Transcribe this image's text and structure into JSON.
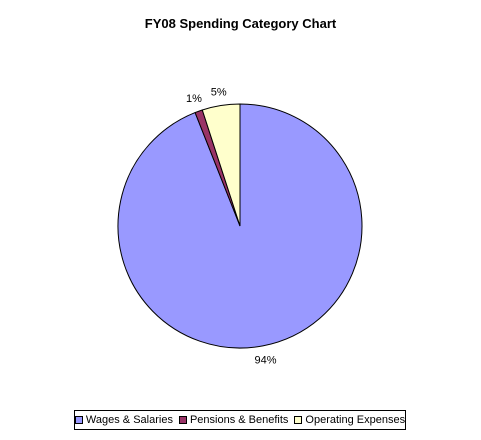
{
  "chart_data": {
    "type": "pie",
    "title": "FY08 Spending Category Chart",
    "slices": [
      {
        "label": "Wages & Salaries",
        "value": 94,
        "display": "94%",
        "color": "#9999ff"
      },
      {
        "label": "Pensions & Benefits",
        "value": 1,
        "display": "1%",
        "color": "#993366"
      },
      {
        "label": "Operating Expenses",
        "value": 5,
        "display": "5%",
        "color": "#ffffcc"
      }
    ],
    "legend_position": "bottom"
  }
}
